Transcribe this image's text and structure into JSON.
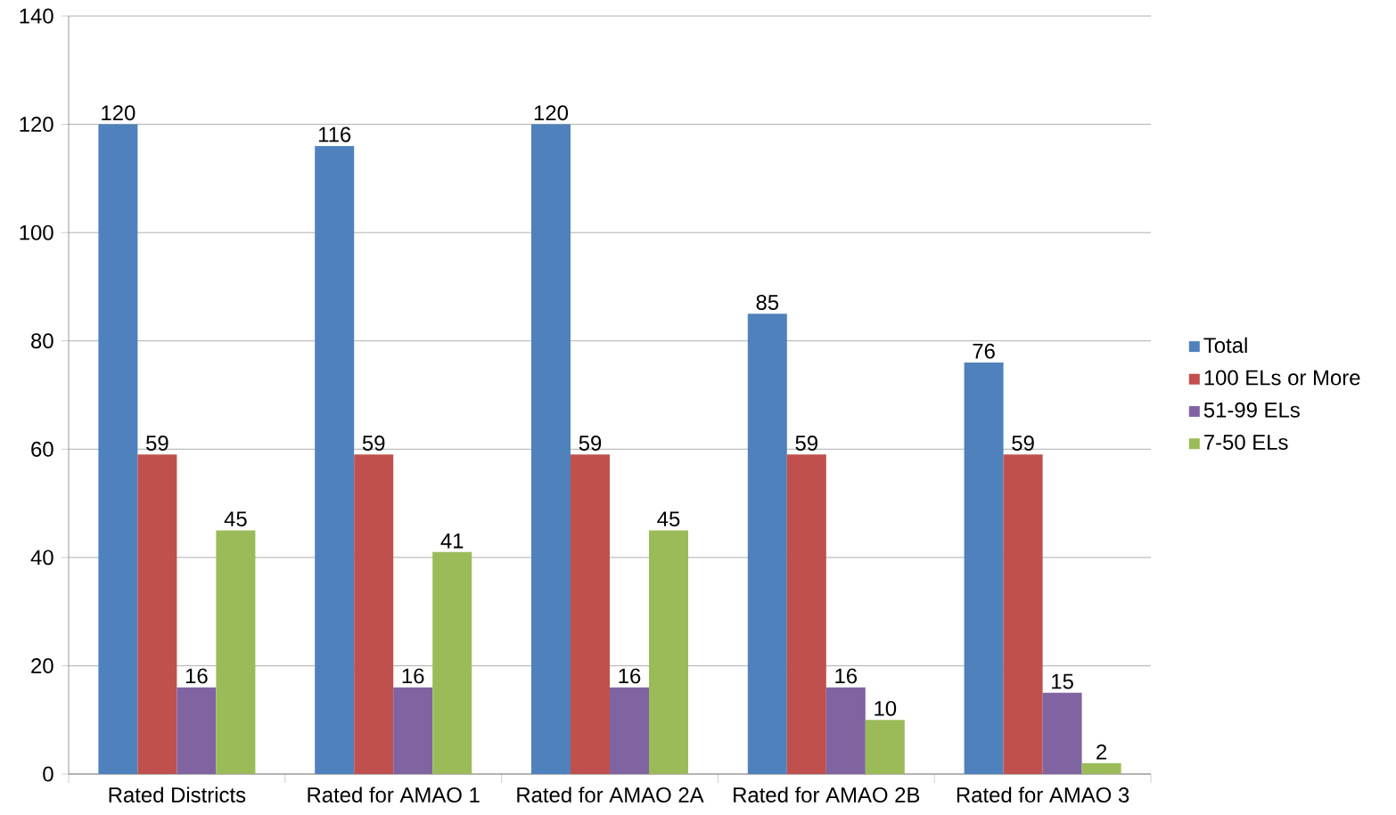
{
  "chart_data": {
    "type": "bar",
    "categories": [
      "Rated Districts",
      "Rated for AMAO 1",
      "Rated for AMAO 2A",
      "Rated for AMAO 2B",
      "Rated for AMAO 3"
    ],
    "series": [
      {
        "name": "Total",
        "color": "#4f81bd",
        "values": [
          120,
          116,
          120,
          85,
          76
        ]
      },
      {
        "name": "100 ELs or More",
        "color": "#c0504d",
        "values": [
          59,
          59,
          59,
          59,
          59
        ]
      },
      {
        "name": "51-99 ELs",
        "color": "#8064a2",
        "values": [
          16,
          16,
          16,
          16,
          15
        ]
      },
      {
        "name": "7-50 ELs",
        "color": "#9bbb59",
        "values": [
          45,
          41,
          45,
          10,
          2
        ]
      }
    ],
    "ylim": [
      0,
      140
    ],
    "yticks": [
      0,
      20,
      40,
      60,
      80,
      100,
      120,
      140
    ],
    "grid": "y",
    "legend": "right",
    "data_labels": true
  }
}
